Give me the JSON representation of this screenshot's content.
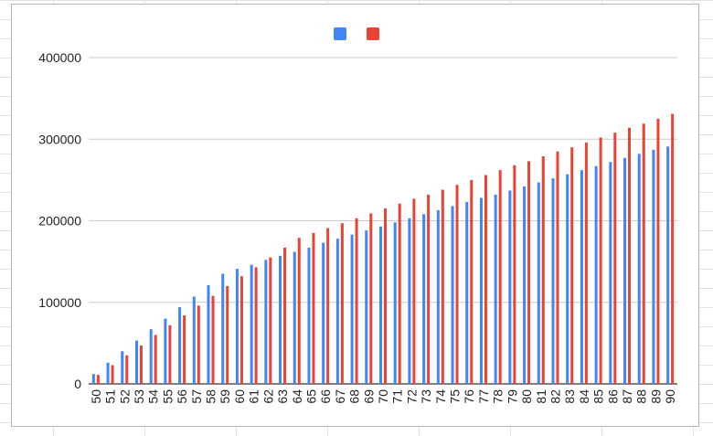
{
  "chart_data": {
    "type": "bar",
    "title": "",
    "xlabel": "",
    "ylabel": "",
    "ylim": [
      0,
      400000
    ],
    "yticks": [
      "0",
      "100000",
      "200000",
      "300000",
      "400000"
    ],
    "grid": true,
    "legend_position": "top",
    "categories": [
      "50",
      "51",
      "52",
      "53",
      "54",
      "55",
      "56",
      "57",
      "58",
      "59",
      "60",
      "61",
      "62",
      "63",
      "64",
      "65",
      "66",
      "67",
      "68",
      "69",
      "70",
      "71",
      "72",
      "73",
      "74",
      "75",
      "76",
      "77",
      "78",
      "79",
      "80",
      "81",
      "82",
      "83",
      "84",
      "85",
      "86",
      "87",
      "88",
      "89",
      "90"
    ],
    "series": [
      {
        "color": "#4285f4",
        "values": [
          12000,
          26000,
          40000,
          53000,
          67000,
          80000,
          94000,
          107000,
          121000,
          135000,
          141000,
          146000,
          152000,
          157000,
          162000,
          167000,
          173000,
          178000,
          183000,
          188000,
          193000,
          198000,
          203000,
          208000,
          213000,
          218000,
          223000,
          228000,
          232000,
          237000,
          242000,
          247000,
          252000,
          257000,
          262000,
          267000,
          272000,
          277000,
          282000,
          287000,
          291000
        ]
      },
      {
        "color": "#ea4335",
        "values": [
          11000,
          23000,
          35000,
          47000,
          60000,
          72000,
          84000,
          96000,
          108000,
          120000,
          132000,
          143000,
          155000,
          167000,
          179000,
          185000,
          191000,
          197000,
          203000,
          209000,
          215000,
          221000,
          227000,
          232000,
          238000,
          244000,
          250000,
          256000,
          262000,
          268000,
          273000,
          279000,
          285000,
          290000,
          296000,
          302000,
          308000,
          314000,
          319000,
          325000,
          331000
        ]
      }
    ]
  }
}
